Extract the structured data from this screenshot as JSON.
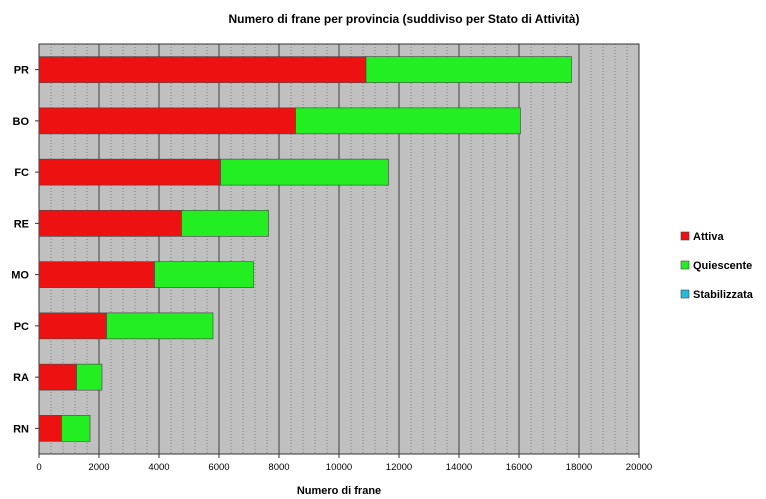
{
  "chart_data": {
    "type": "bar",
    "orientation": "horizontal",
    "stacked": true,
    "title": "Numero di frane per provincia (suddiviso per Stato di Attività)",
    "xlabel": "Numero di frane",
    "ylabel": "",
    "xlim": [
      0,
      20000
    ],
    "x_ticks": [
      "0",
      "2000",
      "4000",
      "6000",
      "8000",
      "10000",
      "12000",
      "14000",
      "16000",
      "18000",
      "20000"
    ],
    "categories": [
      "PR",
      "BO",
      "FC",
      "RE",
      "MO",
      "PC",
      "RA",
      "RN"
    ],
    "series": [
      {
        "name": "Attiva",
        "color": "#ee1111",
        "values": [
          10900,
          8550,
          6050,
          4750,
          3850,
          2250,
          1250,
          750
        ]
      },
      {
        "name": "Quiescente",
        "color": "#22ee22",
        "values": [
          6850,
          7500,
          5600,
          2900,
          3300,
          3550,
          850,
          950
        ]
      },
      {
        "name": "Stabilizzata",
        "color": "#22bbdd",
        "values": [
          0,
          0,
          0,
          0,
          0,
          0,
          0,
          0
        ]
      }
    ],
    "grid": true,
    "plot_background": "#c0c0c0",
    "legend_position": "right"
  }
}
